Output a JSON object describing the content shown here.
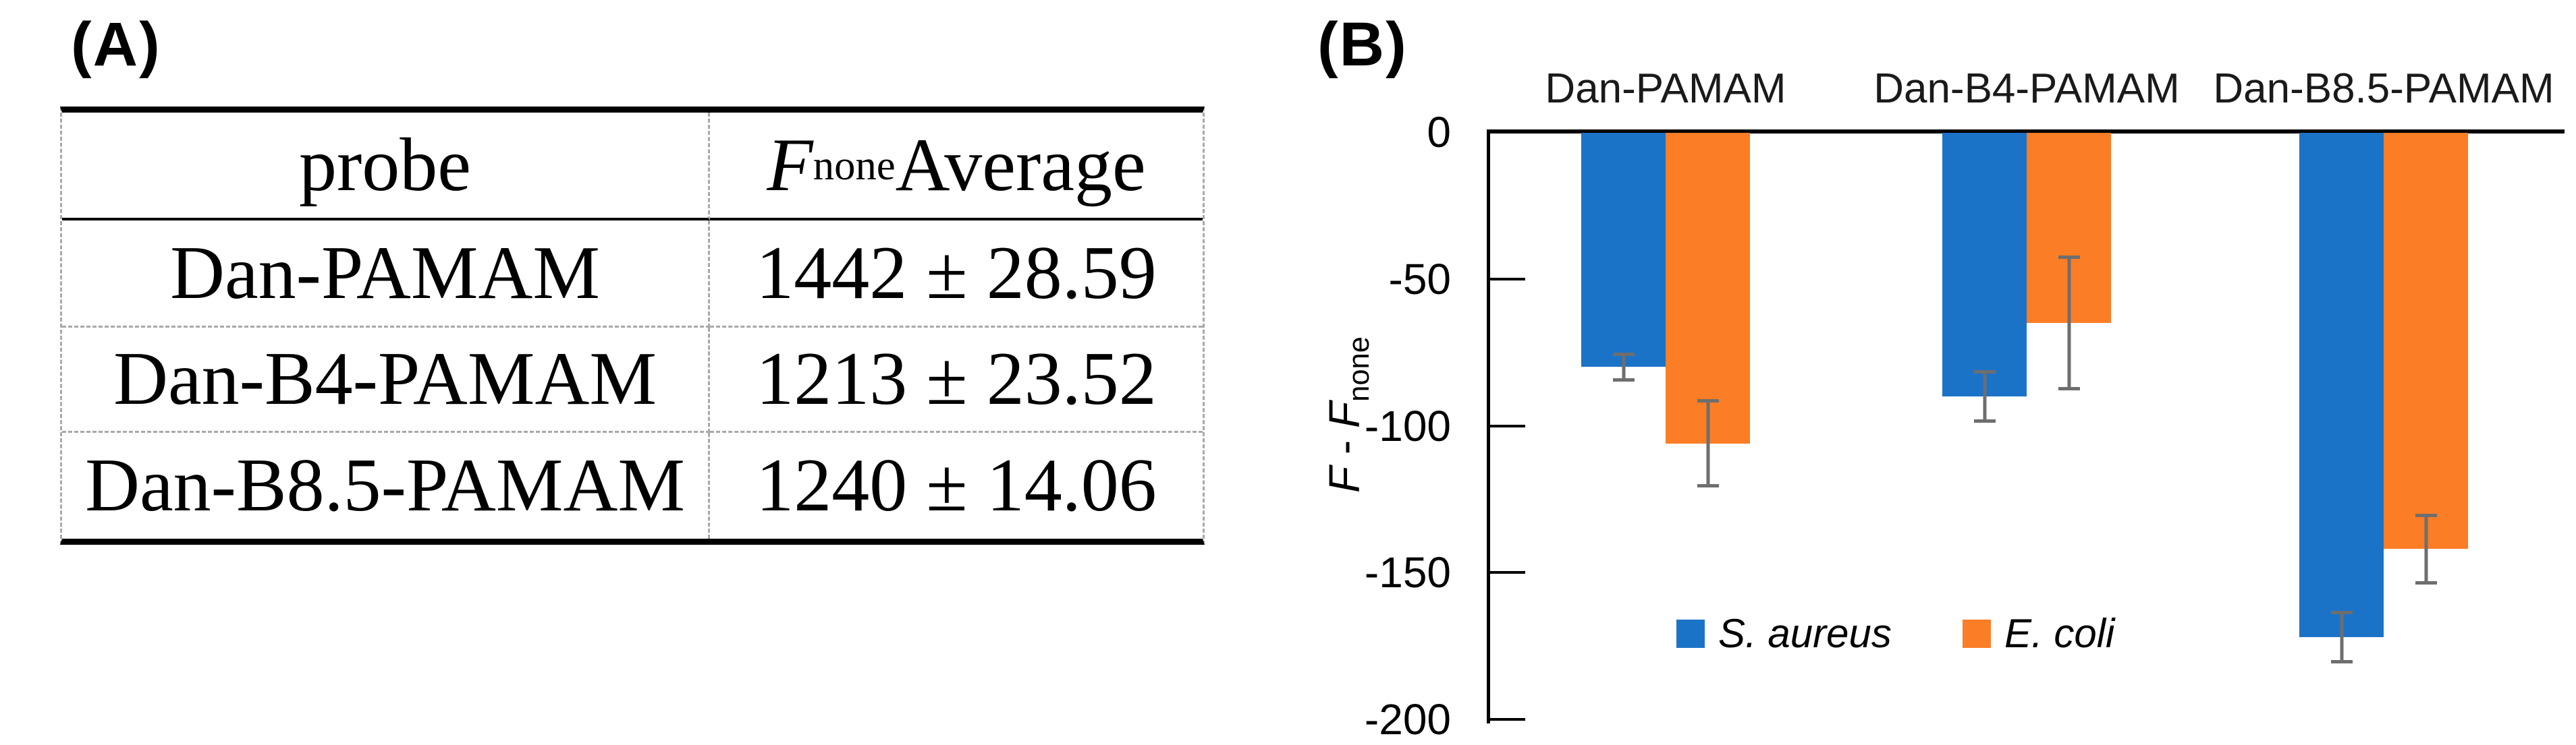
{
  "panel_a": {
    "label": "(A)",
    "table": {
      "header": {
        "probe": "probe",
        "f": "F",
        "f_sub": "none",
        "average": " Average"
      },
      "rows": [
        {
          "probe": "Dan-PAMAM",
          "value": "1442 ± 28.59"
        },
        {
          "probe": "Dan-B4-PAMAM",
          "value": "1213 ± 23.52"
        },
        {
          "probe": "Dan-B8.5-PAMAM",
          "value": "1240 ± 14.06"
        }
      ]
    }
  },
  "panel_b": {
    "label": "(B)"
  },
  "chart_data": {
    "type": "bar",
    "title": "",
    "xlabel": "",
    "ylabel": "F - F_none",
    "ylabel_parts": {
      "f1": "F",
      "minus": " - ",
      "f2": "F",
      "sub": "none"
    },
    "categories": [
      "Dan-PAMAM",
      "Dan-B4-PAMAM",
      "Dan-B8.5-PAMAM"
    ],
    "series": [
      {
        "name": "S. aureus",
        "color": "#1b73c8",
        "values": [
          -80,
          -90,
          -172
        ],
        "errors": [
          5,
          9,
          9
        ]
      },
      {
        "name": "E. coli",
        "color": "#fb7d25",
        "values": [
          -106,
          -65,
          -142
        ],
        "errors": [
          15,
          23,
          12
        ]
      }
    ],
    "yticks": [
      "0",
      "-50",
      "-100",
      "-150",
      "-200"
    ],
    "ylim": [
      -200,
      0
    ],
    "grid": false,
    "legend_position": "inside-bottom-center",
    "error_bar_color": "#6e6e6e",
    "axis_color": "#000000"
  }
}
